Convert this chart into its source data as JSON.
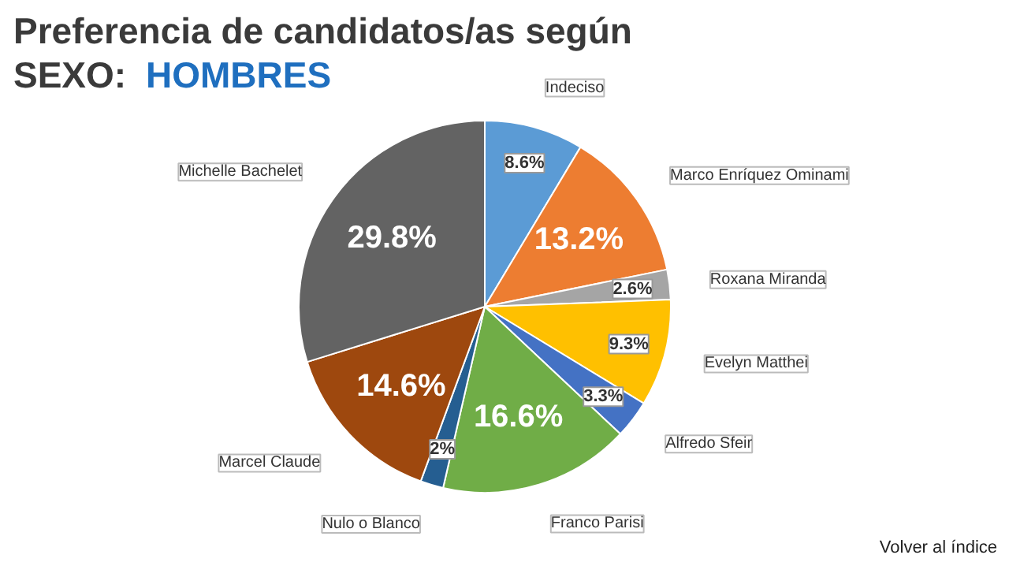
{
  "chart_data": {
    "type": "pie",
    "title": "Preferencia de candidatos/as según",
    "subtitle": "SEXO: HOMBRES",
    "categories": [
      "Indeciso",
      "Marco Enríquez Ominami",
      "Roxana Miranda",
      "Evelyn Matthei",
      "Alfredo Sfeir",
      "Franco Parisi",
      "Nulo o Blanco",
      "Marcel Claude",
      "Michelle Bachelet"
    ],
    "values": [
      8.6,
      13.2,
      2.6,
      9.3,
      3.3,
      16.6,
      2,
      14.6,
      29.8
    ],
    "colors": [
      "#5b9bd5",
      "#ed7d31",
      "#a5a5a5",
      "#ffc000",
      "#4472c4",
      "#70ad47",
      "#255e91",
      "#9e480e",
      "#636363"
    ],
    "value_labels": [
      "8.6%",
      "13.2%",
      "2.6%",
      "9.3%",
      "3.3%",
      "16.6%",
      "2%",
      "14.6%",
      "29.8%"
    ],
    "annotations": [
      "Volver al índice"
    ]
  }
}
